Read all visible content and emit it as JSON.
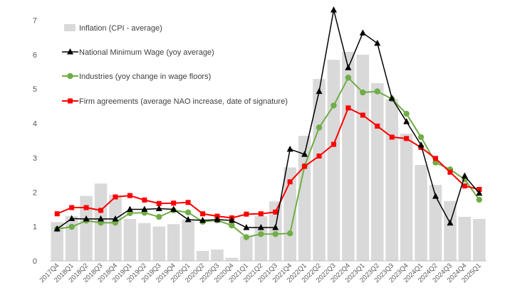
{
  "chart_data": {
    "type": "bar",
    "categories": [
      "2017Q4",
      "2018Q1",
      "2018Q2",
      "2018Q3",
      "2018Q4",
      "2019Q1",
      "2019Q2",
      "2019Q3",
      "2019Q4",
      "2020Q1",
      "2020Q2",
      "2020Q3",
      "2020Q4",
      "2021Q1",
      "2021Q2",
      "2021Q3",
      "2021Q4",
      "2022Q1",
      "2022Q2",
      "2022Q3",
      "2022Q4",
      "2023Q1",
      "2023Q2",
      "2023Q3",
      "2023Q4",
      "2024Q1",
      "2024Q2",
      "2024Q3",
      "2024Q4",
      "2025Q1"
    ],
    "ylim": [
      0,
      7.3
    ],
    "yticks": [
      0,
      1,
      2,
      3,
      4,
      5,
      6,
      7
    ],
    "grid": false,
    "legend_position": "top-left",
    "series": [
      {
        "name": "Inflation (CPI - average)",
        "kind": "bar",
        "color": "#d9d9d9",
        "values": [
          1.13,
          1.3,
          1.89,
          2.25,
          1.92,
          1.22,
          1.1,
          1.0,
          1.07,
          1.2,
          0.29,
          0.33,
          0.09,
          0.72,
          1.3,
          1.73,
          2.72,
          3.64,
          5.29,
          5.85,
          6.08,
          6.0,
          5.17,
          4.71,
          3.7,
          2.79,
          2.21,
          1.74,
          1.28,
          1.22
        ]
      },
      {
        "name": "National Minimum Wage (yoy average)",
        "kind": "line",
        "marker": "triangle",
        "color": "#000000",
        "values": [
          0.93,
          1.23,
          1.22,
          1.22,
          1.22,
          1.5,
          1.5,
          1.52,
          1.5,
          1.2,
          1.18,
          1.2,
          1.18,
          0.97,
          0.97,
          0.97,
          3.25,
          3.1,
          4.93,
          7.3,
          5.62,
          6.63,
          6.33,
          4.73,
          4.05,
          3.37,
          1.88,
          1.1,
          2.47,
          1.97
        ]
      },
      {
        "name": "Industries (yoy change in wage floors)",
        "kind": "line",
        "marker": "circle",
        "color": "#70ad47",
        "values": [
          0.93,
          0.99,
          1.17,
          1.11,
          1.11,
          1.39,
          1.4,
          1.28,
          1.47,
          1.41,
          1.14,
          1.18,
          1.03,
          0.69,
          0.78,
          0.78,
          0.8,
          2.76,
          3.88,
          4.52,
          5.33,
          4.9,
          4.93,
          4.71,
          4.28,
          3.6,
          2.86,
          2.66,
          2.37,
          1.78
        ]
      },
      {
        "name": "Firm agreements (average NAO increase, date of signature)",
        "kind": "line",
        "marker": "square",
        "color": "#ff0000",
        "values": [
          1.37,
          1.55,
          1.55,
          1.47,
          1.86,
          1.9,
          1.77,
          1.67,
          1.68,
          1.7,
          1.37,
          1.3,
          1.25,
          1.36,
          1.37,
          1.42,
          2.3,
          2.75,
          3.05,
          3.39,
          4.45,
          4.24,
          3.92,
          3.6,
          3.56,
          3.3,
          2.98,
          2.58,
          2.18,
          2.08
        ]
      }
    ]
  }
}
